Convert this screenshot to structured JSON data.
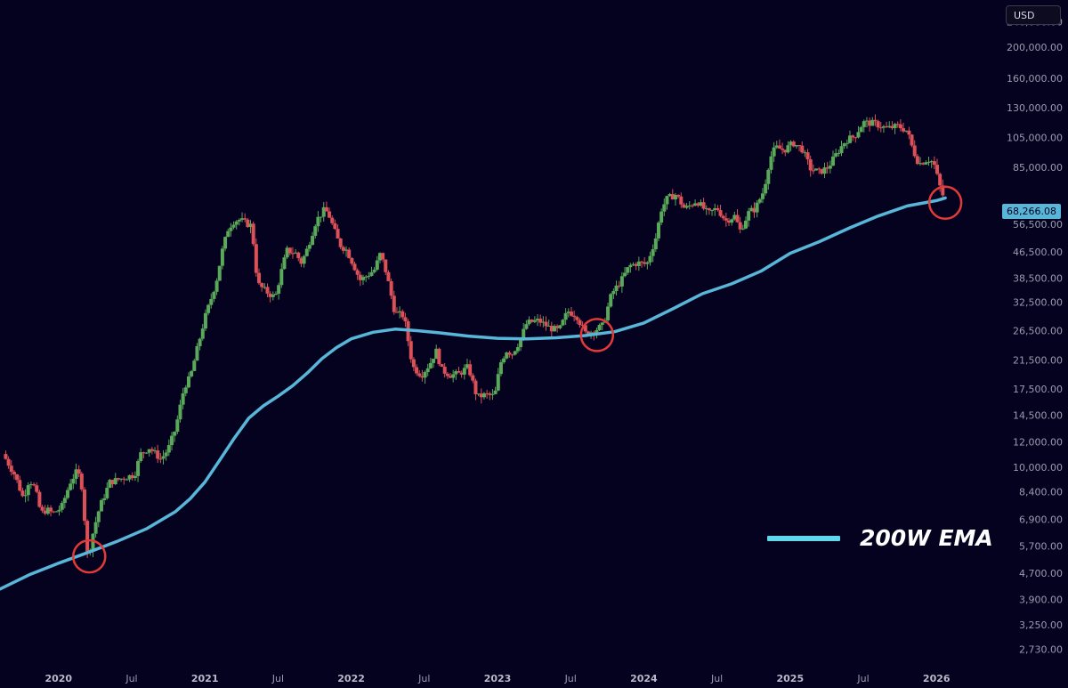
{
  "chart_data": {
    "type": "candlestick",
    "currency": "USD",
    "y_scale": "log",
    "ylim": [
      2400,
      280000
    ],
    "y_ticks": [
      {
        "v": 240000,
        "label": "240,000.00"
      },
      {
        "v": 200000,
        "label": "200,000.00"
      },
      {
        "v": 160000,
        "label": "160,000.00"
      },
      {
        "v": 130000,
        "label": "130,000.00"
      },
      {
        "v": 105000,
        "label": "105,000.00"
      },
      {
        "v": 85000,
        "label": "85,000.00"
      },
      {
        "v": 56500,
        "label": "56,500.00"
      },
      {
        "v": 46500,
        "label": "46,500.00"
      },
      {
        "v": 38500,
        "label": "38,500.00"
      },
      {
        "v": 32500,
        "label": "32,500.00"
      },
      {
        "v": 26500,
        "label": "26,500.00"
      },
      {
        "v": 21500,
        "label": "21,500.00"
      },
      {
        "v": 17500,
        "label": "17,500.00"
      },
      {
        "v": 14500,
        "label": "14,500.00"
      },
      {
        "v": 12000,
        "label": "12,000.00"
      },
      {
        "v": 10000,
        "label": "10,000.00"
      },
      {
        "v": 8400,
        "label": "8,400.00"
      },
      {
        "v": 6900,
        "label": "6,900.00"
      },
      {
        "v": 5700,
        "label": "5,700.00"
      },
      {
        "v": 4700,
        "label": "4,700.00"
      },
      {
        "v": 3900,
        "label": "3,900.00"
      },
      {
        "v": 3250,
        "label": "3,250.00"
      },
      {
        "v": 2730,
        "label": "2,730.00"
      }
    ],
    "x_ticks": [
      {
        "t": 2020.0,
        "label": "2020",
        "year": true
      },
      {
        "t": 2020.5,
        "label": "Jul",
        "year": false
      },
      {
        "t": 2021.0,
        "label": "2021",
        "year": true
      },
      {
        "t": 2021.5,
        "label": "Jul",
        "year": false
      },
      {
        "t": 2022.0,
        "label": "2022",
        "year": true
      },
      {
        "t": 2022.5,
        "label": "Jul",
        "year": false
      },
      {
        "t": 2023.0,
        "label": "2023",
        "year": true
      },
      {
        "t": 2023.5,
        "label": "Jul",
        "year": false
      },
      {
        "t": 2024.0,
        "label": "2024",
        "year": true
      },
      {
        "t": 2024.5,
        "label": "Jul",
        "year": false
      },
      {
        "t": 2025.0,
        "label": "2025",
        "year": true
      },
      {
        "t": 2025.5,
        "label": "Jul",
        "year": false
      },
      {
        "t": 2026.0,
        "label": "2026",
        "year": true
      }
    ],
    "xlim": [
      2019.6,
      2026.4
    ],
    "price_keyframes": [
      [
        2019.62,
        11000
      ],
      [
        2019.7,
        9500
      ],
      [
        2019.76,
        8000
      ],
      [
        2019.8,
        9200
      ],
      [
        2019.84,
        8600
      ],
      [
        2019.88,
        7200
      ],
      [
        2019.92,
        7400
      ],
      [
        2019.96,
        7200
      ],
      [
        2020.02,
        7500
      ],
      [
        2020.08,
        9000
      ],
      [
        2020.13,
        9800
      ],
      [
        2020.16,
        8700
      ],
      [
        2020.2,
        5200
      ],
      [
        2020.24,
        6400
      ],
      [
        2020.28,
        7500
      ],
      [
        2020.35,
        9000
      ],
      [
        2020.45,
        9300
      ],
      [
        2020.52,
        9500
      ],
      [
        2020.56,
        11000
      ],
      [
        2020.62,
        11500
      ],
      [
        2020.7,
        10600
      ],
      [
        2020.75,
        11400
      ],
      [
        2020.8,
        13200
      ],
      [
        2020.86,
        17800
      ],
      [
        2020.9,
        19000
      ],
      [
        2020.95,
        23500
      ],
      [
        2021.0,
        29000
      ],
      [
        2021.04,
        33000
      ],
      [
        2021.08,
        38000
      ],
      [
        2021.12,
        47000
      ],
      [
        2021.16,
        55000
      ],
      [
        2021.2,
        58000
      ],
      [
        2021.24,
        58500
      ],
      [
        2021.28,
        57000
      ],
      [
        2021.32,
        56000
      ],
      [
        2021.36,
        37000
      ],
      [
        2021.42,
        35000
      ],
      [
        2021.48,
        33500
      ],
      [
        2021.52,
        40000
      ],
      [
        2021.56,
        47000
      ],
      [
        2021.62,
        46000
      ],
      [
        2021.66,
        43000
      ],
      [
        2021.7,
        47500
      ],
      [
        2021.76,
        58000
      ],
      [
        2021.82,
        63000
      ],
      [
        2021.85,
        60000
      ],
      [
        2021.92,
        49000
      ],
      [
        2021.97,
        47000
      ],
      [
        2022.02,
        42000
      ],
      [
        2022.06,
        38000
      ],
      [
        2022.1,
        39000
      ],
      [
        2022.16,
        41000
      ],
      [
        2022.2,
        46000
      ],
      [
        2022.24,
        40000
      ],
      [
        2022.3,
        30000
      ],
      [
        2022.36,
        29500
      ],
      [
        2022.42,
        20500
      ],
      [
        2022.48,
        19300
      ],
      [
        2022.54,
        21000
      ],
      [
        2022.58,
        23000
      ],
      [
        2022.62,
        20000
      ],
      [
        2022.68,
        19300
      ],
      [
        2022.74,
        19500
      ],
      [
        2022.8,
        20500
      ],
      [
        2022.86,
        16500
      ],
      [
        2022.92,
        16800
      ],
      [
        2022.98,
        16600
      ],
      [
        2023.02,
        21000
      ],
      [
        2023.06,
        23000
      ],
      [
        2023.1,
        22500
      ],
      [
        2023.15,
        24500
      ],
      [
        2023.2,
        28000
      ],
      [
        2023.28,
        28500
      ],
      [
        2023.36,
        27000
      ],
      [
        2023.42,
        26500
      ],
      [
        2023.48,
        30500
      ],
      [
        2023.54,
        29500
      ],
      [
        2023.6,
        26000
      ],
      [
        2023.66,
        26500
      ],
      [
        2023.72,
        27500
      ],
      [
        2023.78,
        34500
      ],
      [
        2023.84,
        37500
      ],
      [
        2023.9,
        42000
      ],
      [
        2023.96,
        43000
      ],
      [
        2024.02,
        42500
      ],
      [
        2024.08,
        51000
      ],
      [
        2024.12,
        63000
      ],
      [
        2024.16,
        68000
      ],
      [
        2024.22,
        70000
      ],
      [
        2024.28,
        63000
      ],
      [
        2024.36,
        67000
      ],
      [
        2024.44,
        61000
      ],
      [
        2024.5,
        63500
      ],
      [
        2024.56,
        58000
      ],
      [
        2024.62,
        60000
      ],
      [
        2024.66,
        54000
      ],
      [
        2024.72,
        62000
      ],
      [
        2024.76,
        63000
      ],
      [
        2024.82,
        72000
      ],
      [
        2024.86,
        90000
      ],
      [
        2024.9,
        98000
      ],
      [
        2024.96,
        96000
      ],
      [
        2025.02,
        101000
      ],
      [
        2025.08,
        97000
      ],
      [
        2025.14,
        84000
      ],
      [
        2025.2,
        82000
      ],
      [
        2025.26,
        85000
      ],
      [
        2025.32,
        94000
      ],
      [
        2025.38,
        103000
      ],
      [
        2025.44,
        106000
      ],
      [
        2025.5,
        117000
      ],
      [
        2025.58,
        116000
      ],
      [
        2025.66,
        112000
      ],
      [
        2025.74,
        114000
      ],
      [
        2025.8,
        110000
      ],
      [
        2025.84,
        96000
      ],
      [
        2025.88,
        87000
      ],
      [
        2025.94,
        90000
      ],
      [
        2025.98,
        88000
      ],
      [
        2026.02,
        75000
      ],
      [
        2026.06,
        66000
      ]
    ],
    "ema_200w": [
      [
        2019.6,
        4200
      ],
      [
        2019.8,
        4650
      ],
      [
        2020.0,
        5050
      ],
      [
        2020.2,
        5450
      ],
      [
        2020.4,
        5900
      ],
      [
        2020.6,
        6450
      ],
      [
        2020.8,
        7300
      ],
      [
        2020.9,
        8000
      ],
      [
        2021.0,
        9000
      ],
      [
        2021.1,
        10500
      ],
      [
        2021.2,
        12300
      ],
      [
        2021.3,
        14200
      ],
      [
        2021.4,
        15500
      ],
      [
        2021.5,
        16600
      ],
      [
        2021.6,
        17900
      ],
      [
        2021.7,
        19600
      ],
      [
        2021.8,
        21700
      ],
      [
        2021.9,
        23500
      ],
      [
        2022.0,
        25000
      ],
      [
        2022.15,
        26200
      ],
      [
        2022.3,
        26800
      ],
      [
        2022.45,
        26500
      ],
      [
        2022.6,
        26100
      ],
      [
        2022.8,
        25500
      ],
      [
        2023.0,
        25100
      ],
      [
        2023.2,
        25000
      ],
      [
        2023.4,
        25200
      ],
      [
        2023.6,
        25600
      ],
      [
        2023.8,
        26300
      ],
      [
        2024.0,
        28000
      ],
      [
        2024.2,
        31000
      ],
      [
        2024.4,
        34500
      ],
      [
        2024.6,
        37000
      ],
      [
        2024.8,
        40500
      ],
      [
        2025.0,
        46000
      ],
      [
        2025.2,
        50000
      ],
      [
        2025.4,
        55000
      ],
      [
        2025.6,
        60000
      ],
      [
        2025.8,
        64500
      ],
      [
        2026.0,
        67000
      ],
      [
        2026.06,
        68266
      ]
    ],
    "highlights": [
      {
        "t": 2020.21,
        "v": 5300
      },
      {
        "t": 2023.68,
        "v": 25700
      },
      {
        "t": 2026.06,
        "v": 66000
      }
    ],
    "colors": {
      "background": "#04021e",
      "up": "#5aa85a",
      "down": "#dc5058",
      "ema": "#58b6d8",
      "highlight": "#e23a38",
      "legend_line": "#5fd8ec"
    }
  },
  "badge": {
    "currency": "USD"
  },
  "price_tag": {
    "label": "68,266.08"
  },
  "legend": {
    "label": "200W EMA"
  }
}
